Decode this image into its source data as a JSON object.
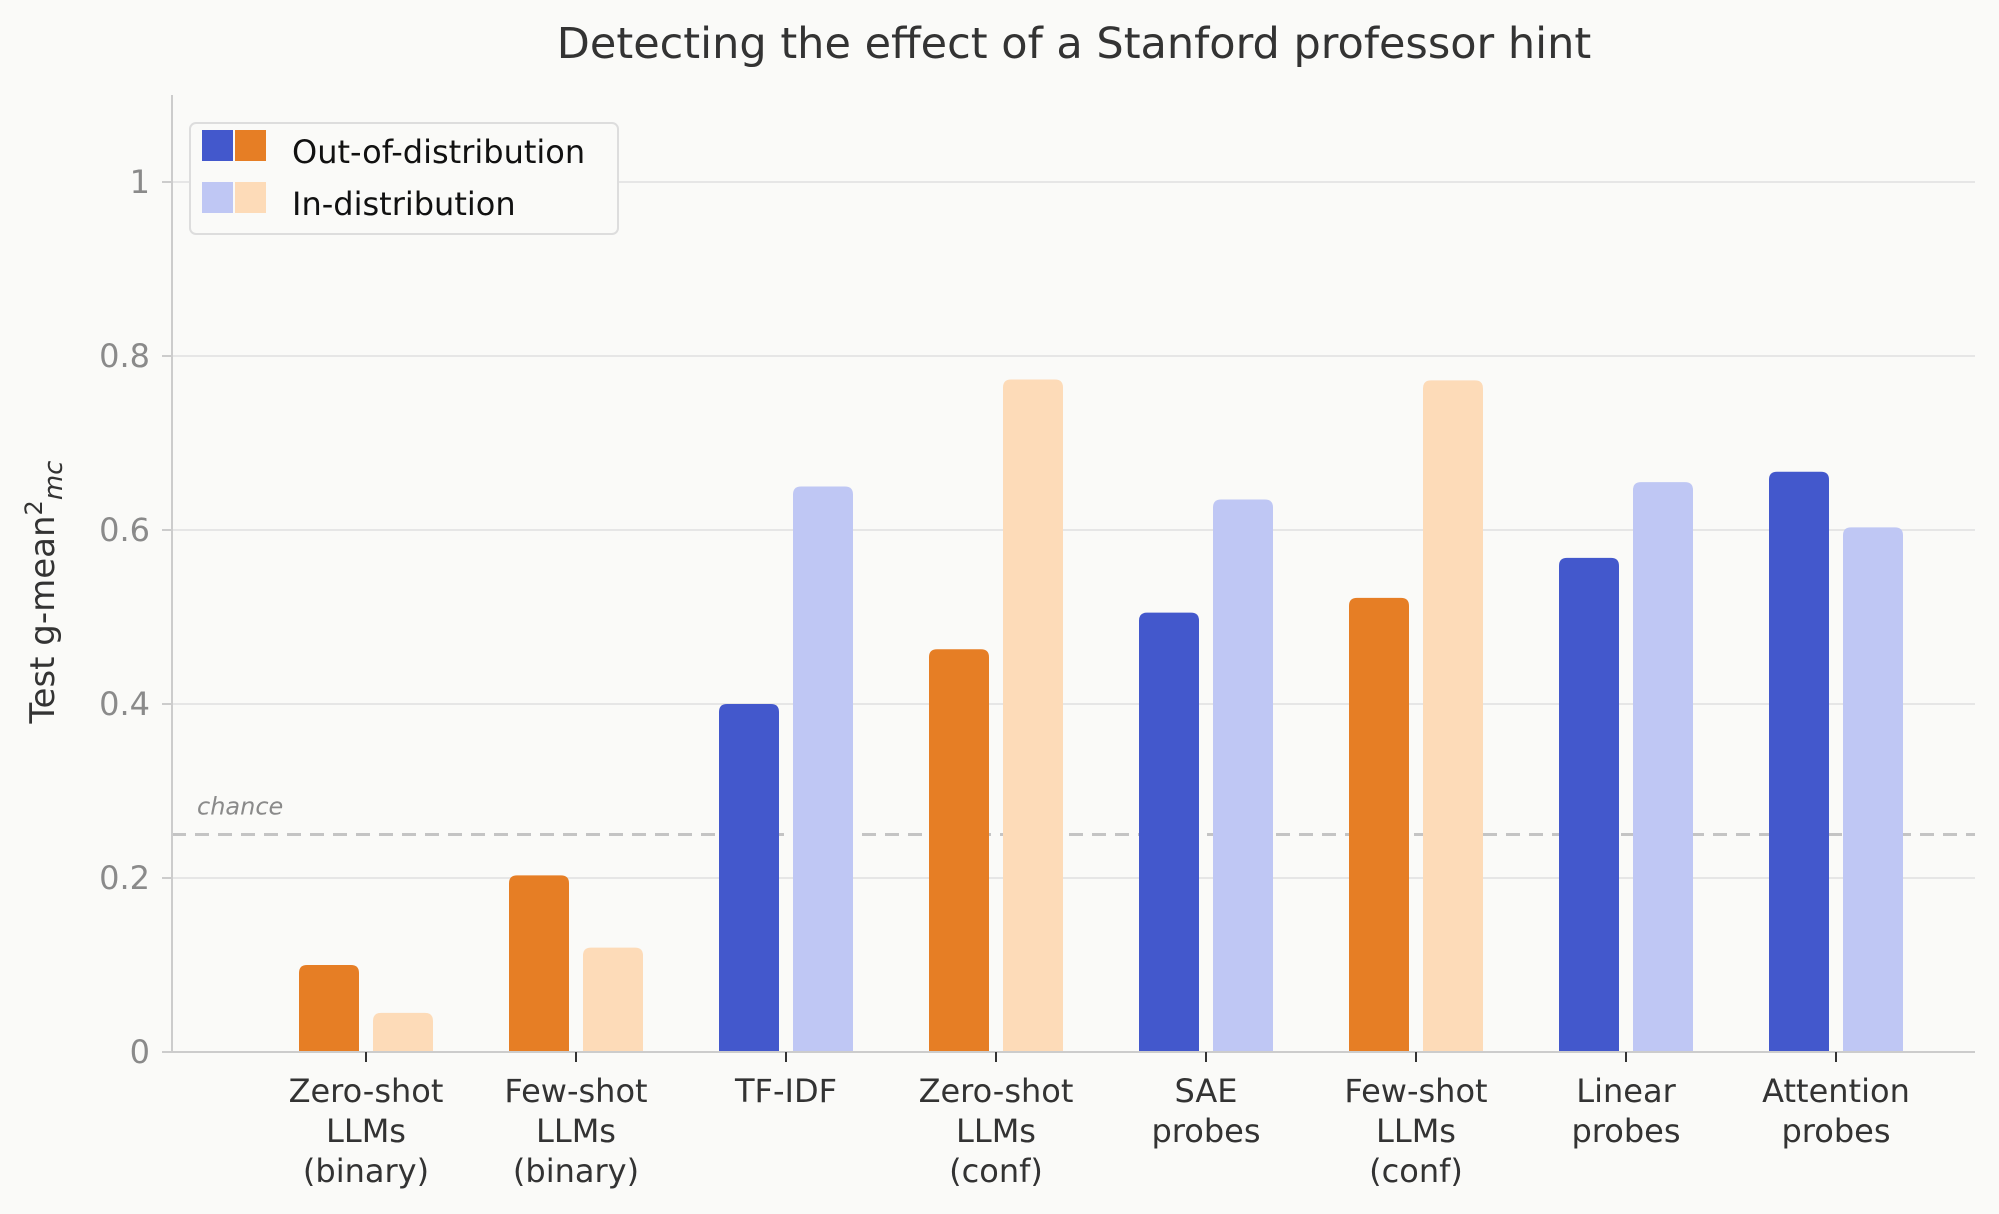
{
  "chart_data": {
    "type": "bar",
    "title": "Detecting the effect of a Stanford professor hint",
    "xlabel": "",
    "ylabel": "Test g-mean²_mc",
    "ylabel_parts": {
      "base": "Test g-mean",
      "sup": "2",
      "sub": "mc"
    },
    "ylim": [
      0,
      1.1
    ],
    "yticks": [
      {
        "value": 0,
        "label": "0"
      },
      {
        "value": 0.2,
        "label": "0.2"
      },
      {
        "value": 0.4,
        "label": "0.4"
      },
      {
        "value": 0.6,
        "label": "0.6"
      },
      {
        "value": 0.8,
        "label": "0.8"
      },
      {
        "value": 1,
        "label": "1"
      }
    ],
    "grid": true,
    "chance": {
      "value": 0.25,
      "label": "chance"
    },
    "legend": {
      "position": "top-left",
      "entries": [
        {
          "label": "Out-of-distribution",
          "colors": [
            "#4358cc",
            "#e67e25"
          ]
        },
        {
          "label": "In-distribution",
          "colors": [
            "#bfc7f4",
            "#fddbb8"
          ]
        }
      ]
    },
    "categories": [
      {
        "lines": [
          "Zero-shot",
          "LLMs",
          "(binary)"
        ],
        "family": "llm",
        "ood": 0.1,
        "id": 0.045
      },
      {
        "lines": [
          "Few-shot",
          "LLMs",
          "(binary)"
        ],
        "family": "llm",
        "ood": 0.203,
        "id": 0.12
      },
      {
        "lines": [
          "TF-IDF"
        ],
        "family": "probe",
        "ood": 0.4,
        "id": 0.65
      },
      {
        "lines": [
          "Zero-shot",
          "LLMs",
          "(conf)"
        ],
        "family": "llm",
        "ood": 0.463,
        "id": 0.773
      },
      {
        "lines": [
          "SAE",
          "probes"
        ],
        "family": "probe",
        "ood": 0.505,
        "id": 0.635
      },
      {
        "lines": [
          "Few-shot",
          "LLMs",
          "(conf)"
        ],
        "family": "llm",
        "ood": 0.522,
        "id": 0.772
      },
      {
        "lines": [
          "Linear",
          "probes"
        ],
        "family": "probe",
        "ood": 0.568,
        "id": 0.655
      },
      {
        "lines": [
          "Attention",
          "probes"
        ],
        "family": "probe",
        "ood": 0.667,
        "id": 0.603
      }
    ],
    "colors": {
      "probe_ood": "#4358cc",
      "probe_id": "#bfc7f4",
      "llm_ood": "#e67e25",
      "llm_id": "#fddbb8",
      "grid": "#e6e6e6",
      "axis": "#cccccc",
      "chance_line": "#c4c4c4"
    }
  }
}
